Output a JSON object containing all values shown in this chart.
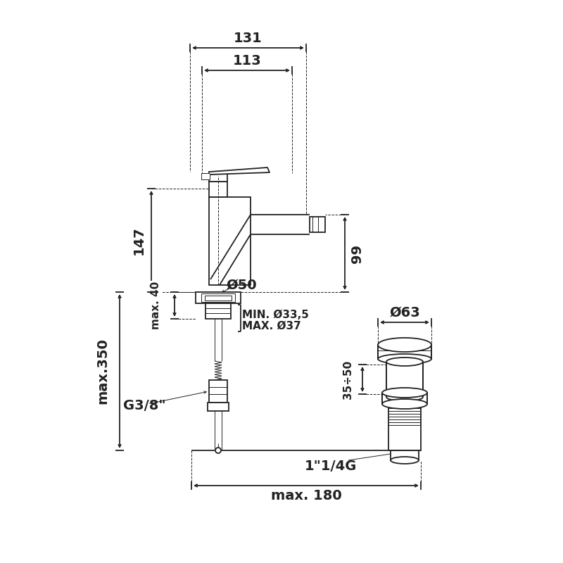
{
  "bg_color": "#ffffff",
  "line_color": "#222222",
  "lw": 1.3,
  "tlw": 0.7,
  "annotations": {
    "dim_131": "131",
    "dim_113": "113",
    "dim_147": "147",
    "dim_99": "99",
    "dim_50": "Ø50",
    "dim_min": "MIN. Ø33,5",
    "dim_max": "MAX. Ø37",
    "dim_40": "max. 40",
    "dim_350": "max.350",
    "dim_63": "Ø63",
    "dim_35_50": "35÷50",
    "dim_g38": "G3/8\"",
    "dim_114g": "1\"1/4G",
    "dim_180": "max. 180"
  },
  "fs_large": 14,
  "fs_med": 11,
  "fs_small": 10
}
